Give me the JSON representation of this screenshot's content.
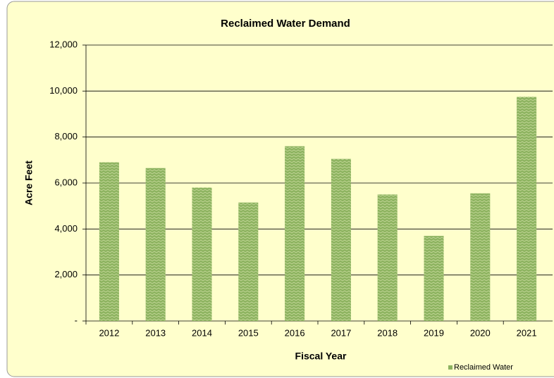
{
  "chart_data": {
    "type": "bar",
    "title": "Reclaimed Water Demand",
    "x_label": "Fiscal Year",
    "y_label": "Acre Feet",
    "categories": [
      "2012",
      "2013",
      "2014",
      "2015",
      "2016",
      "2017",
      "2018",
      "2019",
      "2020",
      "2021"
    ],
    "series": [
      {
        "name": "Reclaimed Water",
        "color": "#8db360",
        "values": [
          6900,
          6650,
          5800,
          5150,
          7600,
          7050,
          5500,
          3700,
          5550,
          9750
        ]
      }
    ],
    "ylim": [
      0,
      12000
    ],
    "yticks": [
      {
        "value": 0,
        "label": "-"
      },
      {
        "value": 2000,
        "label": "2,000"
      },
      {
        "value": 4000,
        "label": "4,000"
      },
      {
        "value": 6000,
        "label": "6,000"
      },
      {
        "value": 8000,
        "label": "8,000"
      },
      {
        "value": 10000,
        "label": "10,000"
      },
      {
        "value": 12000,
        "label": "12,000"
      }
    ],
    "grid": true,
    "legend": "bottom-right"
  }
}
